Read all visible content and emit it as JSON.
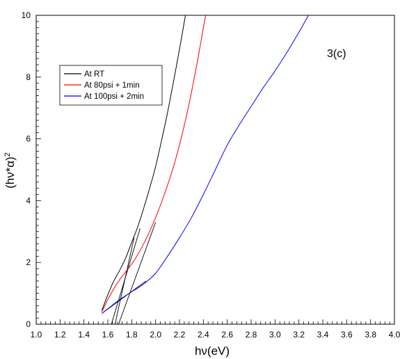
{
  "chart_data": {
    "type": "line",
    "title": "",
    "xlabel": "hν(eV)",
    "ylabel_base": "(hν*α)",
    "ylabel_exp": "2",
    "xlim": [
      1.0,
      4.0
    ],
    "ylim": [
      0,
      10
    ],
    "x_ticks": [
      "1.0",
      "1.2",
      "1.4",
      "1.6",
      "1.8",
      "2.0",
      "2.2",
      "2.4",
      "2.6",
      "2.8",
      "3.0",
      "3.2",
      "3.4",
      "3.6",
      "3.8",
      "4.0"
    ],
    "y_ticks": [
      "0",
      "2",
      "4",
      "6",
      "8",
      "10"
    ],
    "grid": false,
    "legend_position": "upper-left",
    "annotation": "3(c)",
    "series": [
      {
        "name": "At RT",
        "color": "#000000",
        "x": [
          1.55,
          1.6,
          1.65,
          1.7,
          1.75,
          1.8,
          1.85,
          1.9,
          1.95,
          2.0,
          2.05,
          2.1,
          2.15,
          2.2,
          2.25
        ],
        "y": [
          0.45,
          0.95,
          1.4,
          1.75,
          2.15,
          2.65,
          3.15,
          3.75,
          4.4,
          5.1,
          5.95,
          6.85,
          7.85,
          8.9,
          10.0
        ]
      },
      {
        "name": "At 80psi + 1min",
        "color": "#ff0000",
        "x": [
          1.55,
          1.6,
          1.65,
          1.7,
          1.75,
          1.8,
          1.85,
          1.9,
          1.95,
          2.0,
          2.05,
          2.1,
          2.15,
          2.2,
          2.25,
          2.3,
          2.35,
          2.4,
          2.42
        ],
        "y": [
          0.4,
          0.8,
          1.15,
          1.45,
          1.7,
          1.95,
          2.25,
          2.6,
          3.0,
          3.45,
          3.95,
          4.5,
          5.1,
          5.8,
          6.6,
          7.5,
          8.5,
          9.6,
          10.0
        ]
      },
      {
        "name": "At 100psi + 2min",
        "color": "#0000ff",
        "x": [
          1.55,
          1.6,
          1.7,
          1.8,
          1.9,
          2.0,
          2.1,
          2.2,
          2.3,
          2.4,
          2.5,
          2.6,
          2.7,
          2.8,
          2.9,
          3.0,
          3.1,
          3.2,
          3.28
        ],
        "y": [
          0.35,
          0.5,
          0.8,
          1.05,
          1.3,
          1.65,
          2.2,
          2.8,
          3.45,
          4.2,
          5.0,
          5.8,
          6.45,
          7.05,
          7.65,
          8.2,
          8.8,
          9.45,
          10.0
        ]
      }
    ],
    "fit_lines": [
      {
        "x": [
          1.63,
          1.87
        ],
        "y": [
          0,
          3.1
        ]
      },
      {
        "x": [
          1.69,
          2.0
        ],
        "y": [
          0,
          3.3
        ]
      },
      {
        "x": [
          1.66,
          1.82
        ],
        "y": [
          0,
          2.8
        ]
      },
      {
        "x": [
          1.55,
          1.92
        ],
        "y": [
          0.35,
          1.4
        ]
      }
    ]
  }
}
